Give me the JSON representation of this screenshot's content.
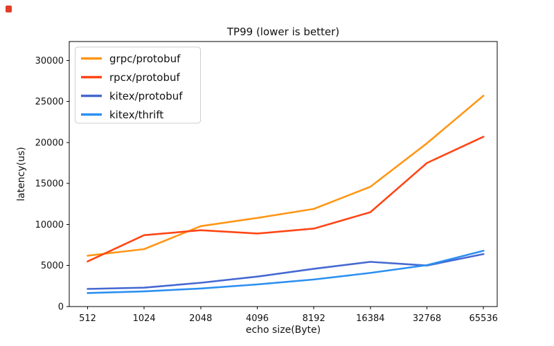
{
  "corner_marker_color": "#e33d2a",
  "chart_data": {
    "type": "line",
    "title": "TP99 (lower is better)",
    "xlabel": "echo size(Byte)",
    "ylabel": "latency(us)",
    "categories": [
      "512",
      "1024",
      "2048",
      "4096",
      "8192",
      "16384",
      "32768",
      "65536"
    ],
    "y_ticks": [
      0,
      5000,
      10000,
      15000,
      20000,
      25000,
      30000
    ],
    "ylim": [
      0,
      32300
    ],
    "grid": false,
    "legend_position": "upper left",
    "series": [
      {
        "name": "grpc/protobuf",
        "color": "#ff9615",
        "values": [
          6200,
          7000,
          9800,
          10800,
          11900,
          14600,
          19900,
          25700
        ]
      },
      {
        "name": "rpcx/protobuf",
        "color": "#ff4514",
        "values": [
          5500,
          8700,
          9300,
          8900,
          9500,
          11500,
          17500,
          20700
        ]
      },
      {
        "name": "kitex/protobuf",
        "color": "#4568d2",
        "values": [
          2150,
          2300,
          2900,
          3650,
          4600,
          5450,
          5000,
          6400
        ]
      },
      {
        "name": "kitex/thrift",
        "color": "#2b8ff2",
        "values": [
          1650,
          1850,
          2200,
          2700,
          3300,
          4100,
          5050,
          6800
        ]
      }
    ]
  }
}
